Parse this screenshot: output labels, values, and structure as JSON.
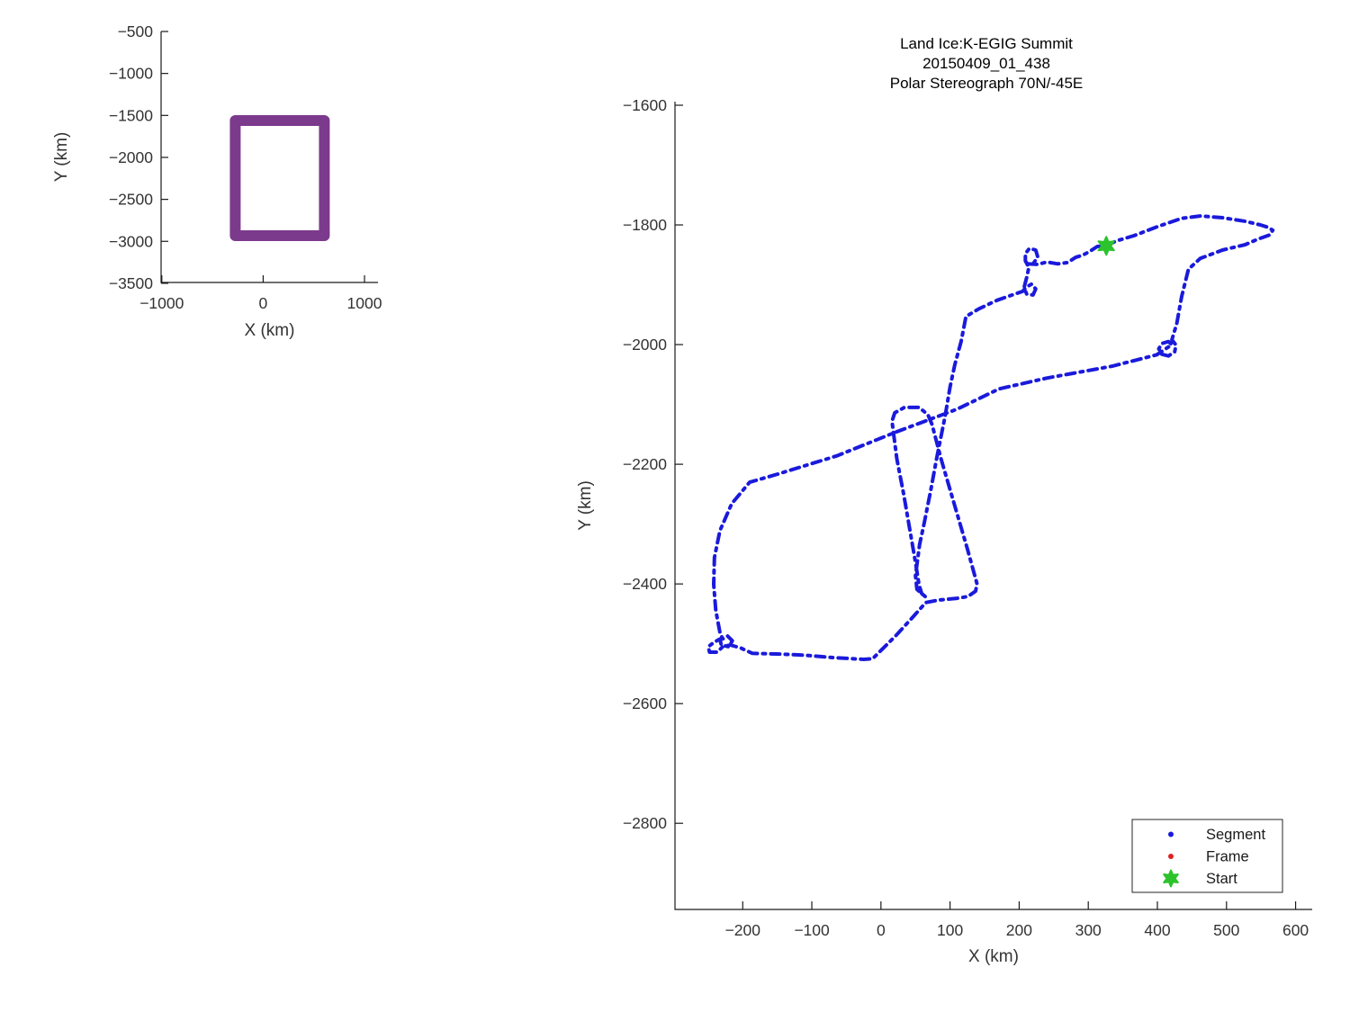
{
  "figure": {
    "background": "#ffffff",
    "axis_color": "#1a1a1a",
    "tick_label_color": "#333333",
    "title_color": "#000000"
  },
  "chart_data": [
    {
      "id": "overview",
      "type": "line",
      "title_lines": [],
      "xlabel": "X (km)",
      "ylabel": "Y (km)",
      "xlim": [
        -1007,
        1133
      ],
      "ylim": [
        -3490,
        -500
      ],
      "xticks": [
        -1000,
        0,
        1000
      ],
      "yticks": [
        -500,
        -1000,
        -1500,
        -2000,
        -2500,
        -3000,
        -3500
      ],
      "grid": false,
      "legend": null,
      "start_point": null,
      "series": [
        {
          "name": "coverage-boundary",
          "color": "#7C3A8D",
          "line_style": "solid",
          "line_width": 12,
          "points": [
            [
              -275,
              -1561
            ],
            [
              604,
              -1561
            ],
            [
              604,
              -2933
            ],
            [
              -275,
              -2933
            ],
            [
              -275,
              -1561
            ],
            [
              -268,
              -1561
            ]
          ]
        }
      ]
    },
    {
      "id": "flight_map",
      "type": "line",
      "title_lines": [
        "Land Ice:K-EGIG Summit",
        "20150409_01_438",
        "Polar Stereograph 70N/-45E"
      ],
      "xlabel": "X (km)",
      "ylabel": "Y (km)",
      "xlim": [
        -298,
        624
      ],
      "ylim": [
        -2944,
        -1594
      ],
      "xticks": [
        -200,
        -100,
        0,
        100,
        200,
        300,
        400,
        500,
        600
      ],
      "yticks": [
        -1600,
        -1800,
        -2000,
        -2200,
        -2400,
        -2600,
        -2800
      ],
      "grid": false,
      "legend": {
        "position": "bottom-right",
        "entries": [
          {
            "label": "Segment",
            "marker": "dot",
            "color": "#1A1ADC"
          },
          {
            "label": "Frame",
            "marker": "dot",
            "color": "#DD2222"
          },
          {
            "label": "Start",
            "marker": "star",
            "color": "#2DC32D"
          }
        ]
      },
      "start_point": [
        326,
        -1835
      ],
      "series": [
        {
          "name": "Segment",
          "color": "#1A1ADC",
          "line_style": "dashdot",
          "line_width": 4,
          "points": [
            [
              326,
              -1835
            ],
            [
              340,
              -1827
            ],
            [
              366,
              -1818
            ],
            [
              400,
              -1803
            ],
            [
              435,
              -1789
            ],
            [
              462,
              -1785
            ],
            [
              494,
              -1788
            ],
            [
              527,
              -1794
            ],
            [
              549,
              -1800
            ],
            [
              560,
              -1804
            ],
            [
              567,
              -1809
            ],
            [
              562,
              -1817
            ],
            [
              545,
              -1824
            ],
            [
              527,
              -1833
            ],
            [
              494,
              -1842
            ],
            [
              462,
              -1856
            ],
            [
              445,
              -1874
            ],
            [
              435,
              -1920
            ],
            [
              428,
              -1965
            ],
            [
              421,
              -1992
            ],
            [
              427,
              -2001
            ],
            [
              425,
              -2012
            ],
            [
              416,
              -2019
            ],
            [
              406,
              -2016
            ],
            [
              402,
              -2007
            ],
            [
              407,
              -1998
            ],
            [
              416,
              -1995
            ],
            [
              421,
              -2000
            ],
            [
              399,
              -2017
            ],
            [
              335,
              -2036
            ],
            [
              240,
              -2056
            ],
            [
              171,
              -2074
            ],
            [
              110,
              -2108
            ],
            [
              22,
              -2146
            ],
            [
              -64,
              -2186
            ],
            [
              -151,
              -2217
            ],
            [
              -190,
              -2230
            ],
            [
              -216,
              -2266
            ],
            [
              -233,
              -2311
            ],
            [
              -241,
              -2356
            ],
            [
              -242,
              -2401
            ],
            [
              -239,
              -2444
            ],
            [
              -233,
              -2481
            ],
            [
              -229,
              -2492
            ],
            [
              -222,
              -2487
            ],
            [
              -215,
              -2495
            ],
            [
              -220,
              -2505
            ],
            [
              -231,
              -2502
            ],
            [
              -233,
              -2492
            ],
            [
              -242,
              -2498
            ],
            [
              -250,
              -2505
            ],
            [
              -248,
              -2514
            ],
            [
              -237,
              -2514
            ],
            [
              -229,
              -2505
            ],
            [
              -218,
              -2502
            ],
            [
              -203,
              -2507
            ],
            [
              -186,
              -2516
            ],
            [
              -151,
              -2517
            ],
            [
              -112,
              -2519
            ],
            [
              -69,
              -2523
            ],
            [
              -25,
              -2526
            ],
            [
              -12,
              -2525
            ],
            [
              22,
              -2486
            ],
            [
              48,
              -2453
            ],
            [
              65,
              -2431
            ],
            [
              83,
              -2427
            ],
            [
              110,
              -2424
            ],
            [
              126,
              -2421
            ],
            [
              137,
              -2412
            ],
            [
              139,
              -2400
            ],
            [
              125,
              -2341
            ],
            [
              106,
              -2266
            ],
            [
              87,
              -2191
            ],
            [
              74,
              -2134
            ],
            [
              68,
              -2117
            ],
            [
              55,
              -2105
            ],
            [
              34,
              -2105
            ],
            [
              20,
              -2114
            ],
            [
              16,
              -2128
            ],
            [
              23,
              -2191
            ],
            [
              33,
              -2251
            ],
            [
              42,
              -2311
            ],
            [
              50,
              -2364
            ],
            [
              55,
              -2401
            ],
            [
              59,
              -2416
            ],
            [
              66,
              -2423
            ],
            [
              52,
              -2409
            ],
            [
              50,
              -2386
            ],
            [
              56,
              -2334
            ],
            [
              63,
              -2296
            ],
            [
              72,
              -2244
            ],
            [
              81,
              -2188
            ],
            [
              93,
              -2119
            ],
            [
              100,
              -2071
            ],
            [
              107,
              -2033
            ],
            [
              116,
              -1995
            ],
            [
              123,
              -1953
            ],
            [
              142,
              -1940
            ],
            [
              168,
              -1926
            ],
            [
              190,
              -1917
            ],
            [
              205,
              -1911
            ],
            [
              210,
              -1904
            ],
            [
              218,
              -1899
            ],
            [
              224,
              -1907
            ],
            [
              220,
              -1917
            ],
            [
              211,
              -1916
            ],
            [
              207,
              -1905
            ],
            [
              211,
              -1887
            ],
            [
              214,
              -1871
            ],
            [
              209,
              -1860
            ],
            [
              209,
              -1848
            ],
            [
              215,
              -1839
            ],
            [
              224,
              -1842
            ],
            [
              227,
              -1854
            ],
            [
              220,
              -1865
            ],
            [
              213,
              -1865
            ],
            [
              227,
              -1866
            ],
            [
              240,
              -1862
            ],
            [
              256,
              -1865
            ],
            [
              270,
              -1863
            ],
            [
              282,
              -1854
            ],
            [
              291,
              -1851
            ],
            [
              301,
              -1845
            ],
            [
              313,
              -1836
            ],
            [
              326,
              -1835
            ]
          ]
        }
      ]
    }
  ]
}
